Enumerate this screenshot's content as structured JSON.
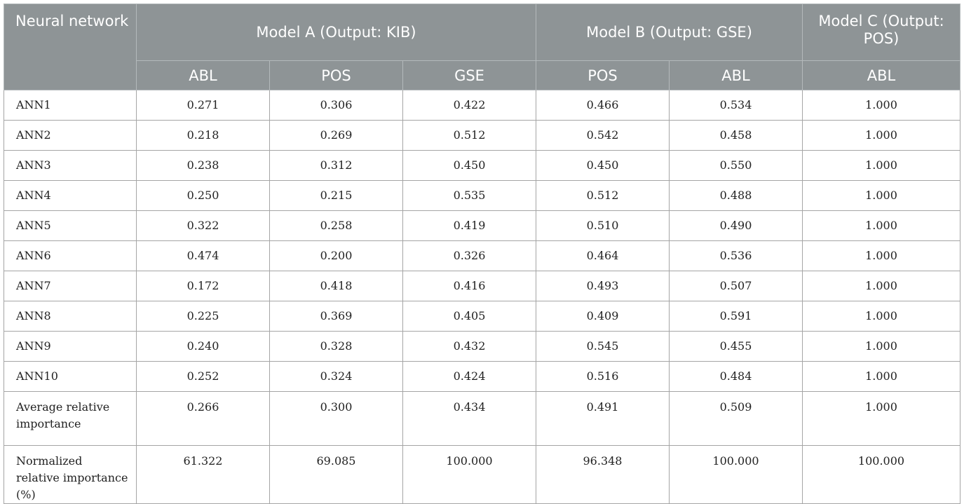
{
  "table": {
    "header": {
      "row_label": "Neural network",
      "groups": [
        {
          "label": "Model A (Output: KIB)",
          "columns": [
            "ABL",
            "POS",
            "GSE"
          ]
        },
        {
          "label": "Model B (Output: GSE)",
          "columns": [
            "POS",
            "ABL"
          ]
        },
        {
          "label": "Model C (Output: POS)",
          "columns": [
            "ABL"
          ]
        }
      ]
    },
    "rows": [
      {
        "name": "ANN1",
        "values": [
          "0.271",
          "0.306",
          "0.422",
          "0.466",
          "0.534",
          "1.000"
        ]
      },
      {
        "name": "ANN2",
        "values": [
          "0.218",
          "0.269",
          "0.512",
          "0.542",
          "0.458",
          "1.000"
        ]
      },
      {
        "name": "ANN3",
        "values": [
          "0.238",
          "0.312",
          "0.450",
          "0.450",
          "0.550",
          "1.000"
        ]
      },
      {
        "name": "ANN4",
        "values": [
          "0.250",
          "0.215",
          "0.535",
          "0.512",
          "0.488",
          "1.000"
        ]
      },
      {
        "name": "ANN5",
        "values": [
          "0.322",
          "0.258",
          "0.419",
          "0.510",
          "0.490",
          "1.000"
        ]
      },
      {
        "name": "ANN6",
        "values": [
          "0.474",
          "0.200",
          "0.326",
          "0.464",
          "0.536",
          "1.000"
        ]
      },
      {
        "name": "ANN7",
        "values": [
          "0.172",
          "0.418",
          "0.416",
          "0.493",
          "0.507",
          "1.000"
        ]
      },
      {
        "name": "ANN8",
        "values": [
          "0.225",
          "0.369",
          "0.405",
          "0.409",
          "0.591",
          "1.000"
        ]
      },
      {
        "name": "ANN9",
        "values": [
          "0.240",
          "0.328",
          "0.432",
          "0.545",
          "0.455",
          "1.000"
        ]
      },
      {
        "name": "ANN10",
        "values": [
          "0.252",
          "0.324",
          "0.424",
          "0.516",
          "0.484",
          "1.000"
        ]
      },
      {
        "name": "Average relative importance",
        "values": [
          "0.266",
          "0.300",
          "0.434",
          "0.491",
          "0.509",
          "1.000"
        ]
      },
      {
        "name": "Normalized relative importance (%)",
        "values": [
          "61.322",
          "69.085",
          "100.000",
          "96.348",
          "100.000",
          "100.000"
        ]
      }
    ]
  }
}
